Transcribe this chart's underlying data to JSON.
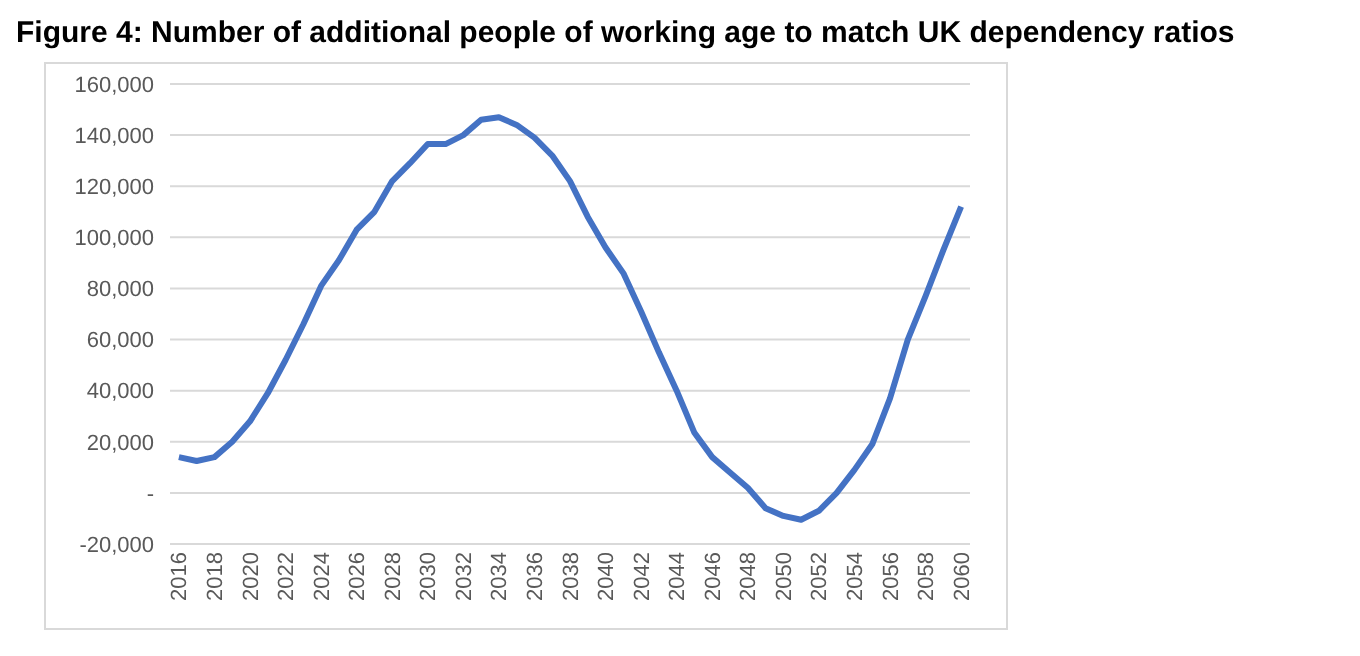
{
  "chart_data": {
    "type": "line",
    "title": "Figure 4: Number of additional people of working age to match UK dependency ratios",
    "x": [
      2016,
      2017,
      2018,
      2019,
      2020,
      2021,
      2022,
      2023,
      2024,
      2025,
      2026,
      2027,
      2028,
      2029,
      2030,
      2031,
      2032,
      2033,
      2034,
      2035,
      2036,
      2037,
      2038,
      2039,
      2040,
      2041,
      2042,
      2043,
      2044,
      2045,
      2046,
      2047,
      2048,
      2049,
      2050,
      2051,
      2052,
      2053,
      2054,
      2055,
      2056,
      2057,
      2058,
      2059,
      2060
    ],
    "series": [
      {
        "color": "#4472c4",
        "values": [
          14000,
          12500,
          14000,
          20000,
          28000,
          39000,
          52000,
          66000,
          81000,
          91000,
          103000,
          110000,
          122000,
          129000,
          136500,
          136500,
          140000,
          146000,
          147000,
          144000,
          139000,
          132000,
          122000,
          108000,
          96000,
          86000,
          71000,
          55000,
          40000,
          23500,
          14000,
          8000,
          2000,
          -6000,
          -9000,
          -10500,
          -7000,
          0,
          9000,
          19000,
          37000,
          60000,
          77000,
          95000,
          112000
        ]
      }
    ],
    "xlim": [
      2015.5,
      2060.5
    ],
    "xticks": [
      2016,
      2018,
      2020,
      2022,
      2024,
      2026,
      2028,
      2030,
      2032,
      2034,
      2036,
      2038,
      2040,
      2042,
      2044,
      2046,
      2048,
      2050,
      2052,
      2054,
      2056,
      2058,
      2060
    ],
    "ylim": [
      -20000,
      160000
    ],
    "yticks": [
      {
        "value": -20000,
        "label": "-20,000"
      },
      {
        "value": 0,
        "label": "-"
      },
      {
        "value": 20000,
        "label": "20,000"
      },
      {
        "value": 40000,
        "label": "40,000"
      },
      {
        "value": 60000,
        "label": "60,000"
      },
      {
        "value": 80000,
        "label": "80,000"
      },
      {
        "value": 100000,
        "label": "100,000"
      },
      {
        "value": 120000,
        "label": "120,000"
      },
      {
        "value": 140000,
        "label": "140,000"
      },
      {
        "value": 160000,
        "label": "160,000"
      }
    ],
    "grid": "y",
    "marker": "none",
    "line_style": "solid"
  }
}
